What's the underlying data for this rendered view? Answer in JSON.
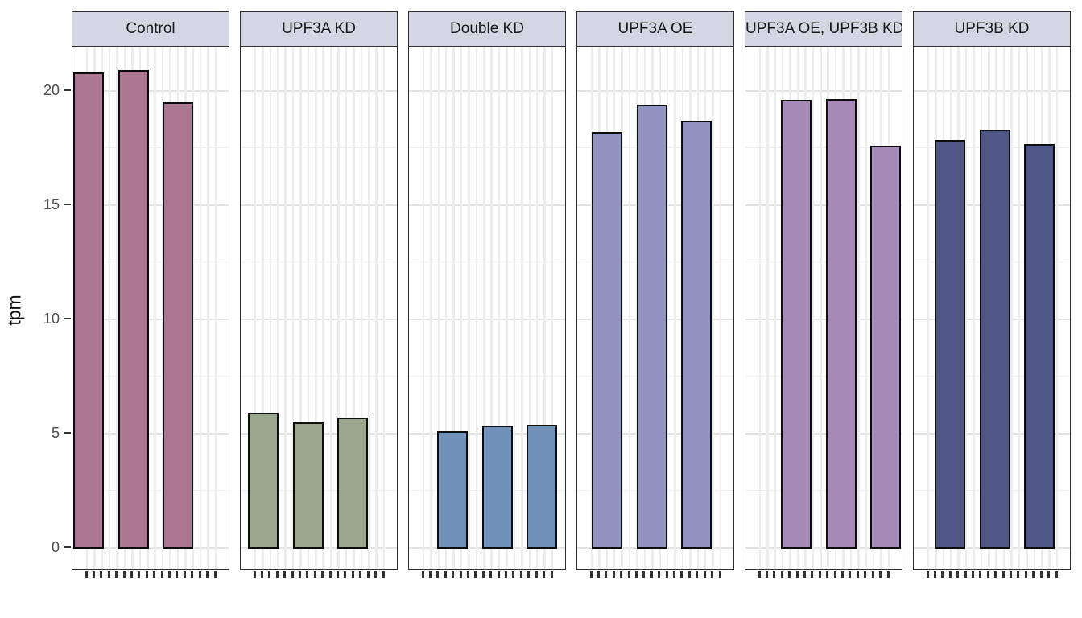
{
  "chart_data": {
    "type": "bar",
    "title": "",
    "subtitle": "",
    "xlabel": "",
    "ylabel": "tpm",
    "legend": "none",
    "grid": true,
    "ylim": [
      -1,
      21.9
    ],
    "yticks": [
      0,
      5,
      10,
      15,
      20
    ],
    "minor_grid_step": 2.5,
    "x_minor_ticks_per_panel": 18,
    "replicates_per_condition": 3,
    "facets": [
      {
        "label": "Control",
        "color": "#ab7790",
        "values": [
          20.8,
          20.9,
          19.5
        ]
      },
      {
        "label": "UPF3A KD",
        "color": "#9aa68e",
        "values": [
          5.9,
          5.5,
          5.7
        ]
      },
      {
        "label": "Double KD",
        "color": "#7191ba",
        "values": [
          5.1,
          5.35,
          5.4
        ]
      },
      {
        "label": "UPF3A OE",
        "color": "#9194c1",
        "values": [
          18.2,
          19.4,
          18.7
        ]
      },
      {
        "label": "UPF3A OE, UPF3B KD",
        "color": "#a58ab8",
        "values": [
          19.6,
          19.65,
          17.6
        ]
      },
      {
        "label": "UPF3B KD",
        "color": "#4d5685",
        "values": [
          17.85,
          18.3,
          17.65
        ]
      }
    ],
    "style": {
      "strip_fill": "#d5d6e3",
      "panel_border": "#2f2f2f",
      "bar_stroke": "#0d0d0d",
      "grid_major": "#e3e3e3",
      "grid_minor": "#efefef",
      "axis_text": "#4d4d4d"
    }
  }
}
